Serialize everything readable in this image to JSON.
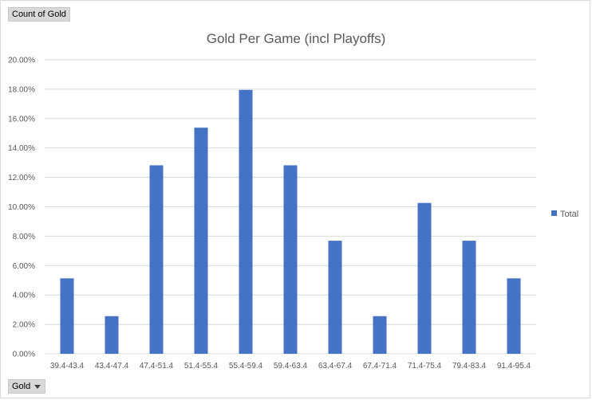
{
  "pivot": {
    "value_field_label": "Count of Gold",
    "axis_field_label": "Gold",
    "axis_field_icon": "dropdown-arrow-icon"
  },
  "colors": {
    "bar": "#4472c4",
    "grid": "#d9d9d9",
    "text": "#595959"
  },
  "chart_data": {
    "type": "bar",
    "title": "Gold Per Game (incl Playoffs)",
    "xlabel": "",
    "ylabel": "",
    "categories": [
      "39.4-43.4",
      "43.4-47.4",
      "47.4-51.4",
      "51.4-55.4",
      "55.4-59.4",
      "59.4-63.4",
      "63.4-67.4",
      "67.4-71.4",
      "71.4-75.4",
      "79.4-83.4",
      "91.4-95.4"
    ],
    "series": [
      {
        "name": "Total",
        "values": [
          5.13,
          2.56,
          12.82,
          15.38,
          17.95,
          12.82,
          7.69,
          2.56,
          10.26,
          7.69,
          5.13
        ]
      }
    ],
    "ylim": [
      0,
      20
    ],
    "yticks": [
      0,
      2,
      4,
      6,
      8,
      10,
      12,
      14,
      16,
      18,
      20
    ],
    "ytick_labels": [
      "0.00%",
      "2.00%",
      "4.00%",
      "6.00%",
      "8.00%",
      "10.00%",
      "12.00%",
      "14.00%",
      "16.00%",
      "18.00%",
      "20.00%"
    ],
    "grid": true,
    "legend_position": "right"
  }
}
